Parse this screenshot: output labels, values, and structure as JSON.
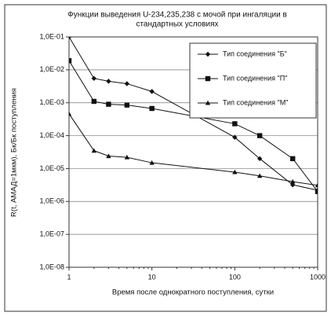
{
  "chart_data": {
    "type": "line",
    "title": [
      "Функции выведения U-234,235,238 с мочой при ингаляции в",
      "стандартных условиях"
    ],
    "xlabel": "Время после однократного поступления, сутки",
    "ylabel": "R(t, АМАД=1мкм), Бк/Бк поступления",
    "xscale": "log",
    "yscale": "log",
    "x": [
      1,
      2,
      3,
      5,
      10,
      100,
      200,
      500,
      1000
    ],
    "series": [
      {
        "name": "Тип соединения \"Б\"",
        "color": "#111111",
        "marker": "diamond",
        "values": [
          0.1,
          0.0055,
          0.0045,
          0.0038,
          0.0022,
          8.9e-05,
          2e-05,
          3.2e-06,
          2.2e-06
        ]
      },
      {
        "name": "Тип соединения \"П\"",
        "color": "#111111",
        "marker": "square",
        "values": [
          0.019,
          0.0011,
          0.0009,
          0.00085,
          0.00067,
          0.00023,
          0.0001,
          2e-05,
          2e-06
        ]
      },
      {
        "name": "Тип соединения \"М\"",
        "color": "#111111",
        "marker": "triangle",
        "values": [
          0.00046,
          3.5e-05,
          2.4e-05,
          2.2e-05,
          1.5e-05,
          7.8e-06,
          6e-06,
          4e-06,
          3.1e-06
        ]
      }
    ],
    "xlim": [
      1,
      1000
    ],
    "xticks": [
      1,
      10,
      100,
      1000
    ],
    "ylim": [
      1e-08,
      0.1
    ],
    "yticks": [
      {
        "value": 1e-08,
        "label": "1,0E-08"
      },
      {
        "value": 1e-07,
        "label": "1,0E-07"
      },
      {
        "value": 1e-06,
        "label": "1,0E-06"
      },
      {
        "value": 1e-05,
        "label": "1,0E-05"
      },
      {
        "value": 0.0001,
        "label": "1,0E-04"
      },
      {
        "value": 0.001,
        "label": "1,0E-03"
      },
      {
        "value": 0.01,
        "label": "1,0E-02"
      },
      {
        "value": 0.1,
        "label": "1,0E-01"
      }
    ],
    "grid": true,
    "legend": "upper right"
  }
}
